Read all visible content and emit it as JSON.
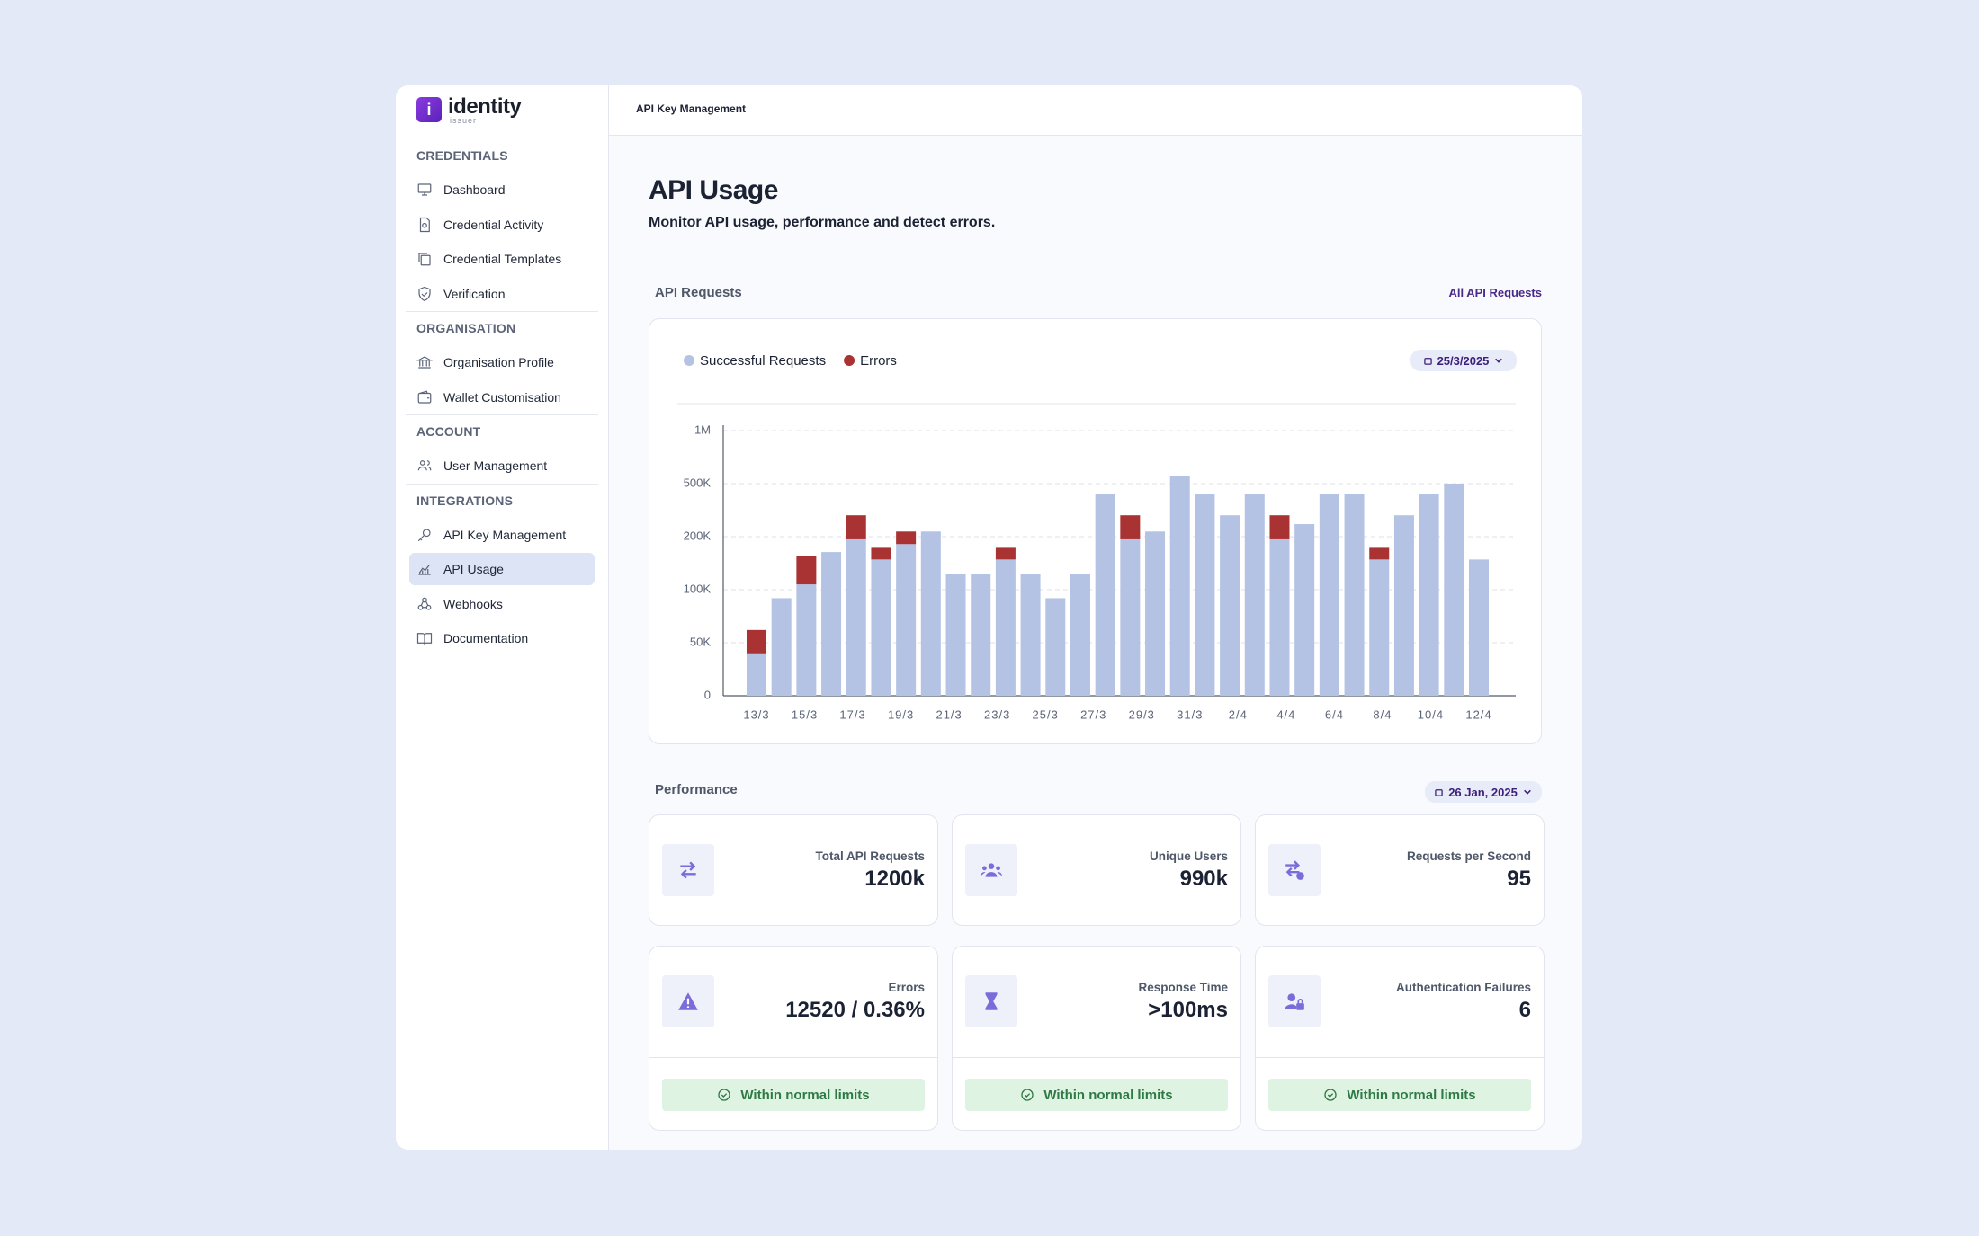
{
  "sidebar": {
    "logo": "identity",
    "logo_sub": "issuer",
    "sections": [
      {
        "title": "CREDENTIALS",
        "items": [
          {
            "label": "Dashboard"
          },
          {
            "label": "Credential Activity"
          },
          {
            "label": "Credential Templates"
          },
          {
            "label": "Verification"
          }
        ]
      },
      {
        "title": "ORGANISATION",
        "items": [
          {
            "label": "Organisation Profile"
          },
          {
            "label": "Wallet Customisation"
          }
        ]
      },
      {
        "title": "ACCOUNT",
        "items": [
          {
            "label": "User Management"
          }
        ]
      },
      {
        "title": "INTEGRATIONS",
        "items": [
          {
            "label": "API Key Management"
          },
          {
            "label": "API Usage",
            "active": true
          },
          {
            "label": "Webhooks"
          },
          {
            "label": "Documentation"
          }
        ]
      }
    ]
  },
  "header": {
    "breadcrumb": "API Key Management"
  },
  "page": {
    "title": "API Usage",
    "subtitle": "Monitor API usage, performance and detect errors."
  },
  "requests_section": {
    "title": "API Requests",
    "link": "All API Requests",
    "date": "25/3/2025"
  },
  "chart_data": {
    "type": "stacked_bar",
    "series": [
      {
        "name": "Successful Requests",
        "color": "#b4c3e4",
        "values": [
          40000,
          92000,
          110000,
          171000,
          195000,
          157000,
          186000,
          229000,
          129000,
          129000,
          157000,
          129000,
          92000,
          129000,
          443000,
          195000,
          229000,
          571000,
          443000,
          321000,
          443000,
          195000,
          271000,
          443000,
          443000,
          157000,
          321000,
          443000,
          500000,
          157000
        ]
      },
      {
        "name": "Errors",
        "color": "#a93232",
        "values": [
          22000,
          0,
          54000,
          0,
          126000,
          22000,
          43000,
          0,
          0,
          0,
          22000,
          0,
          0,
          0,
          0,
          126000,
          0,
          0,
          0,
          0,
          0,
          126000,
          0,
          0,
          0,
          22000,
          0,
          0,
          0,
          0
        ]
      }
    ],
    "xtick_labels": [
      "13/3",
      "15/3",
      "17/3",
      "19/3",
      "21/3",
      "23/3",
      "25/3",
      "27/3",
      "29/3",
      "31/3",
      "2/4",
      "4/4",
      "6/4",
      "8/4",
      "10/4",
      "12/4"
    ],
    "ylim": [
      0,
      1000000
    ],
    "yticks": [
      0,
      {
        "value": 50000,
        "label": "50K"
      },
      {
        "value": 100000,
        "label": "100K"
      },
      {
        "value": 200000,
        "label": "200K"
      },
      {
        "value": 500000,
        "label": "500K"
      },
      {
        "value": 1000000,
        "label": "1M"
      }
    ],
    "grid": true
  },
  "performance": {
    "title": "Performance",
    "date": "26 Jan, 2025",
    "metrics": [
      {
        "label": "Total API Requests",
        "value": "1200k"
      },
      {
        "label": "Unique Users",
        "value": "990k"
      },
      {
        "label": "Requests per Second",
        "value": "95"
      },
      {
        "label": "Errors",
        "value": "12520 / 0.36%",
        "status": "Within normal limits"
      },
      {
        "label": "Response Time",
        "value": ">100ms",
        "status": "Within normal limits"
      },
      {
        "label": "Authentication Failures",
        "value": "6",
        "status": "Within normal limits"
      }
    ]
  }
}
